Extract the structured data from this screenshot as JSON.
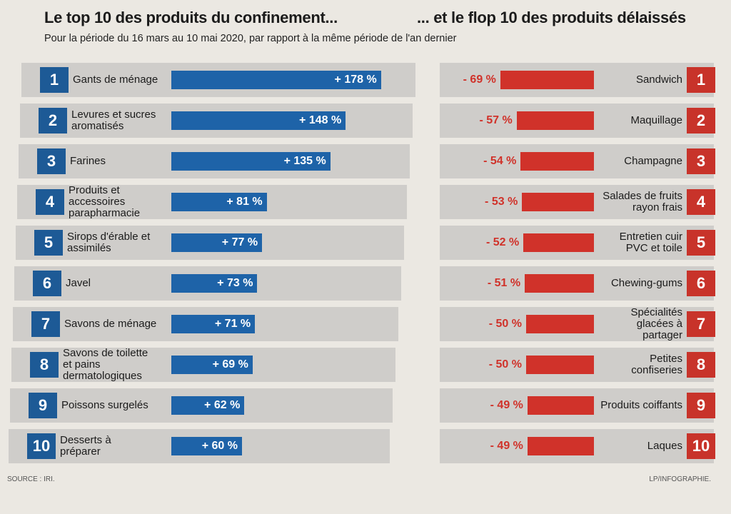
{
  "subtitle": "Pour la période du 16 mars au 10 mai 2020, par rapport à la même période de l'an dernier",
  "source": "SOURCE : IRI.",
  "credit": "LP/INFOGRAPHIE.",
  "chart_data": [
    {
      "type": "bar",
      "title": "Le top 10 des produits du confinement...",
      "color": "#1e63a8",
      "ranks": [
        1,
        2,
        3,
        4,
        5,
        6,
        7,
        8,
        9,
        10
      ],
      "categories": [
        "Gants de ménage",
        "Levures et sucres aromatisés",
        "Farines",
        "Produits et accessoires parapharmacie",
        "Sirops d'érable et assimilés",
        "Javel",
        "Savons de ménage",
        "Savons de toilette et pains dermatologiques",
        "Poissons surgelés",
        "Desserts à préparer"
      ],
      "values": [
        178,
        148,
        135,
        81,
        77,
        73,
        71,
        69,
        62,
        60
      ],
      "value_labels": [
        "+ 178 %",
        "+ 148 %",
        "+ 135 %",
        "+ 81 %",
        "+ 77 %",
        "+ 73 %",
        "+ 71 %",
        "+ 69 %",
        "+ 62 %",
        "+ 60 %"
      ]
    },
    {
      "type": "bar",
      "title": "... et le flop 10 des produits délaissés",
      "color": "#d0322a",
      "ranks": [
        1,
        2,
        3,
        4,
        5,
        6,
        7,
        8,
        9,
        10
      ],
      "categories": [
        "Sandwich",
        "Maquillage",
        "Champagne",
        "Salades de fruits rayon frais",
        "Entretien cuir PVC et toile",
        "Chewing-gums",
        "Spécialités glacées à partager",
        "Petites confiseries",
        "Produits coiffants",
        "Laques"
      ],
      "values": [
        -69,
        -57,
        -54,
        -53,
        -52,
        -51,
        -50,
        -50,
        -49,
        -49
      ],
      "value_labels": [
        "- 69 %",
        "- 57 %",
        "- 54 %",
        "- 53 %",
        "- 52 %",
        "- 51 %",
        "- 50 %",
        "- 50 %",
        "- 49 %",
        "- 49 %"
      ]
    }
  ]
}
